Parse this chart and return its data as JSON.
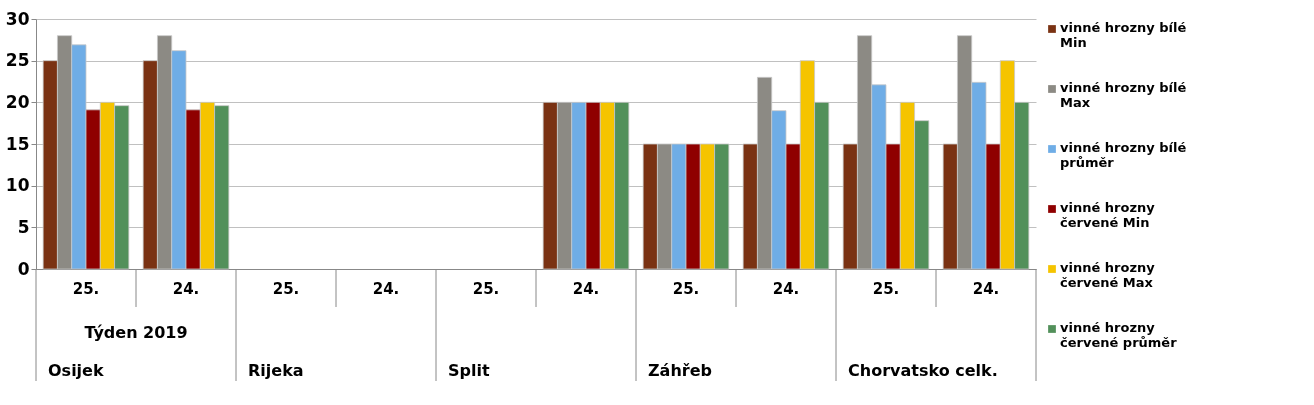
{
  "chart_data": {
    "type": "bar",
    "categories": [
      "25.",
      "24.",
      "25.",
      "24.",
      "25.",
      "24.",
      "25.",
      "24.",
      "25.",
      "24."
    ],
    "annotations": [
      "Týden 2019",
      "Osijek",
      "Rijeka",
      "Split",
      "Záhřeb",
      "Chorvatsko celk."
    ],
    "series": [
      {
        "name": "vinné hrozny bílé Min",
        "color": "#7a3213",
        "values": [
          25,
          25,
          null,
          null,
          null,
          20,
          15,
          15,
          15,
          15
        ]
      },
      {
        "name": "vinné hrozny bílé Max",
        "color": "#8c8a84",
        "values": [
          28,
          28,
          null,
          null,
          null,
          20,
          15,
          23,
          28,
          28
        ]
      },
      {
        "name": "vinné hrozny bílé průměr",
        "color": "#6fade6",
        "values": [
          26.9,
          26.2,
          null,
          null,
          null,
          20,
          15,
          19,
          22.1,
          22.4
        ]
      },
      {
        "name": "vinné hrozny červené  Min",
        "color": "#8f0000",
        "values": [
          19.1,
          19.1,
          null,
          null,
          null,
          20,
          15,
          15,
          15,
          15
        ]
      },
      {
        "name": "vinné hrozny červené Max",
        "color": "#f5c400",
        "values": [
          20,
          20,
          null,
          null,
          null,
          20,
          15,
          25,
          20,
          25
        ]
      },
      {
        "name": "vinné hrozny červené průměr",
        "color": "#52905a",
        "values": [
          19.6,
          19.6,
          null,
          null,
          null,
          20,
          15,
          20,
          17.8,
          20
        ]
      }
    ],
    "ylim": [
      0,
      30
    ],
    "yticks": [
      0,
      5,
      10,
      15,
      20,
      25,
      30
    ],
    "grid": "y",
    "legend": "right"
  }
}
